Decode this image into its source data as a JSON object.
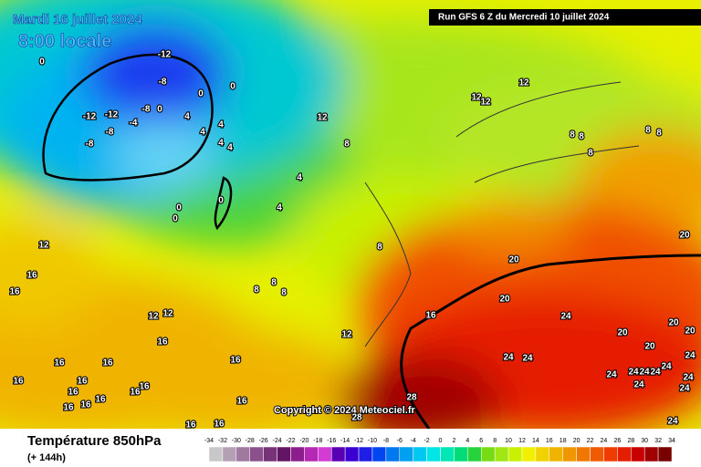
{
  "header": {
    "date": "Mardi 16 juillet 2024",
    "time": "8:00 locale",
    "run": "Run GFS 6 Z du Mercredi 10 juillet 2024"
  },
  "copyright": "Copyright © 2024 Meteociel.fr",
  "legend": {
    "title": "Température 850hPa",
    "subtitle": "(+ 144h)",
    "ticks": [
      -34,
      -32,
      -30,
      -28,
      -26,
      -24,
      -22,
      -20,
      -18,
      -16,
      -14,
      -12,
      -10,
      -8,
      -6,
      -4,
      -2,
      0,
      2,
      4,
      6,
      8,
      10,
      12,
      14,
      16,
      18,
      20,
      22,
      24,
      26,
      28,
      30,
      32,
      34
    ],
    "colors": [
      "#c8c8c8",
      "#b4a0b4",
      "#a078a0",
      "#8c508c",
      "#783278",
      "#641464",
      "#8c1e8c",
      "#b428b4",
      "#d23cd2",
      "#5a00b4",
      "#3c00d2",
      "#1e1ee6",
      "#0046f0",
      "#0078f0",
      "#00a0f0",
      "#00c8f0",
      "#00e6e6",
      "#00e6b4",
      "#00dc78",
      "#28d23c",
      "#78dc14",
      "#a0e614",
      "#c8f000",
      "#f0f000",
      "#f0d200",
      "#f0b400",
      "#f09600",
      "#f07800",
      "#f05a00",
      "#f03c00",
      "#e61e00",
      "#c80000",
      "#a00000",
      "#780000"
    ]
  },
  "contour_labels": [
    -12,
    -8,
    -8,
    -12,
    -12,
    -8,
    -8,
    -4,
    0,
    0,
    0,
    4,
    4,
    4,
    4,
    4,
    0,
    0,
    0,
    0,
    4,
    4,
    12,
    12,
    12,
    12,
    8,
    8,
    8,
    8,
    8,
    8,
    8,
    8,
    8,
    8,
    12,
    16,
    16,
    12,
    12,
    16,
    12,
    16,
    16,
    16,
    16,
    16,
    16,
    16,
    16,
    16,
    16,
    16,
    16,
    16,
    16,
    16,
    20,
    20,
    24,
    20,
    20,
    20,
    20,
    20,
    24,
    24,
    24,
    24,
    24,
    24,
    24,
    24,
    24,
    24,
    24,
    28,
    28,
    24
  ]
}
